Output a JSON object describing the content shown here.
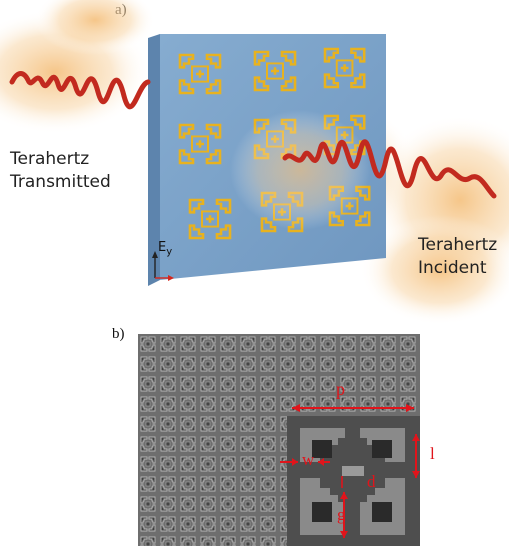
{
  "panel_a": {
    "label": "a)",
    "caption_transmitted": [
      "Terahertz",
      "Transmitted"
    ],
    "caption_incident": [
      "Terahertz",
      "Incident"
    ],
    "axis_label": "E",
    "axis_subscript": "y",
    "colors": {
      "slab": "#7ea4c9",
      "slab_edge": "#5d84ad",
      "resonator": "#e8b21f",
      "wave": "#c22a1f",
      "glow": "#f6c98b"
    }
  },
  "panel_b": {
    "label": "b)",
    "dimension_labels": {
      "period": "p",
      "width": "w",
      "length": "l",
      "d": "d",
      "gap": "g"
    },
    "colors": {
      "annotation": "#e0141b",
      "sem_bg": "#5a5a5a"
    }
  }
}
